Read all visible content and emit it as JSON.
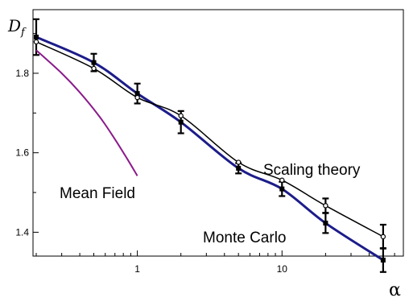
{
  "chart_data": {
    "type": "line",
    "ylabel": "D",
    "ylabel_sub": "f",
    "xlabel": "α",
    "xscale": "log",
    "xlim": [
      0.19,
      69
    ],
    "ylim": [
      1.34,
      1.96
    ],
    "yticks": [
      1.4,
      1.6,
      1.8
    ],
    "ytick_labels": [
      "1.4",
      "1.6",
      "1.8"
    ],
    "xticks": [
      1,
      10
    ],
    "xtick_labels": [
      "1",
      "10"
    ],
    "minor_yticks": [
      1.5,
      1.7,
      1.9
    ],
    "grid": false,
    "series": [
      {
        "name": "Monte Carlo",
        "color": "#1c1c8a",
        "marker": "square-filled",
        "x": [
          0.2,
          0.5,
          1,
          2,
          5,
          10,
          20,
          50
        ],
        "y": [
          1.891,
          1.827,
          1.749,
          1.677,
          1.561,
          1.509,
          1.423,
          1.33
        ],
        "err": [
          0.045,
          0.022,
          0.025,
          0.028,
          0.013,
          0.018,
          0.025,
          0.03
        ]
      },
      {
        "name": "Scaling theory",
        "color": "#000000",
        "marker": "circle-open",
        "x": [
          0.2,
          0.5,
          1,
          2,
          5,
          10,
          20,
          50
        ],
        "y": [
          1.879,
          1.812,
          1.739,
          1.693,
          1.576,
          1.531,
          1.467,
          1.389
        ],
        "err": [
          0,
          0,
          0,
          0,
          0,
          0,
          0.018,
          0.03
        ]
      },
      {
        "name": "Mean Field",
        "color": "#8b1a8b",
        "marker": "none",
        "x": [
          0.2,
          0.3,
          0.4,
          0.55,
          0.7,
          0.85,
          1.0
        ],
        "y": [
          1.858,
          1.8,
          1.752,
          1.69,
          1.634,
          1.585,
          1.542
        ]
      }
    ],
    "annotations": [
      "Scaling theory",
      "Monte Carlo",
      "Mean Field"
    ]
  }
}
